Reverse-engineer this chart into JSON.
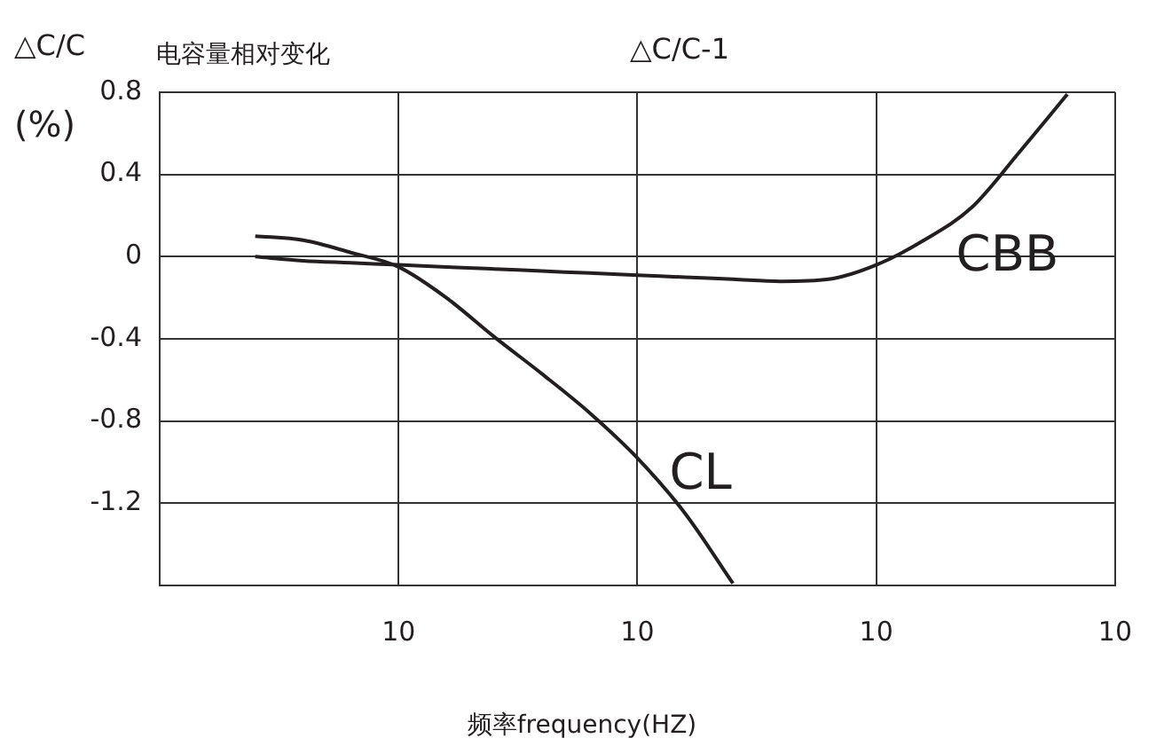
{
  "chart_data": {
    "type": "line",
    "title": "电容量相对变化",
    "subtitle": "△C/C-1",
    "ylabel": "△C/C\n(%)",
    "xlabel": "频率frequency(HZ)",
    "categories": [
      null,
      null,
      null,
      null,
      null,
      "10",
      null,
      null,
      null,
      null,
      "10",
      null,
      null,
      null,
      null,
      "10",
      null,
      null,
      null,
      null,
      "10"
    ],
    "ylim": [
      -1.6,
      0.8
    ],
    "yticks": [
      0.8,
      0.4,
      0,
      -0.4,
      -0.8,
      -1.2
    ],
    "series": [
      {
        "name": "CBB",
        "color": "#231f20",
        "values": [
          null,
          null,
          0,
          -0.02,
          -0.03,
          -0.04,
          -0.05,
          -0.06,
          -0.07,
          -0.08,
          -0.09,
          -0.1,
          -0.11,
          -0.12,
          -0.11,
          -0.04,
          0.08,
          0.24,
          0.51,
          0.79,
          null
        ]
      },
      {
        "name": "CL",
        "color": "#231f20",
        "values": [
          null,
          null,
          0.1,
          0.08,
          0.02,
          -0.05,
          -0.2,
          -0.39,
          -0.57,
          -0.76,
          -0.98,
          -1.25,
          -1.59,
          null,
          null,
          null,
          null,
          null,
          null,
          null,
          null
        ]
      }
    ],
    "grid": true,
    "legend": false,
    "marker": "none",
    "line_style": "solid"
  }
}
